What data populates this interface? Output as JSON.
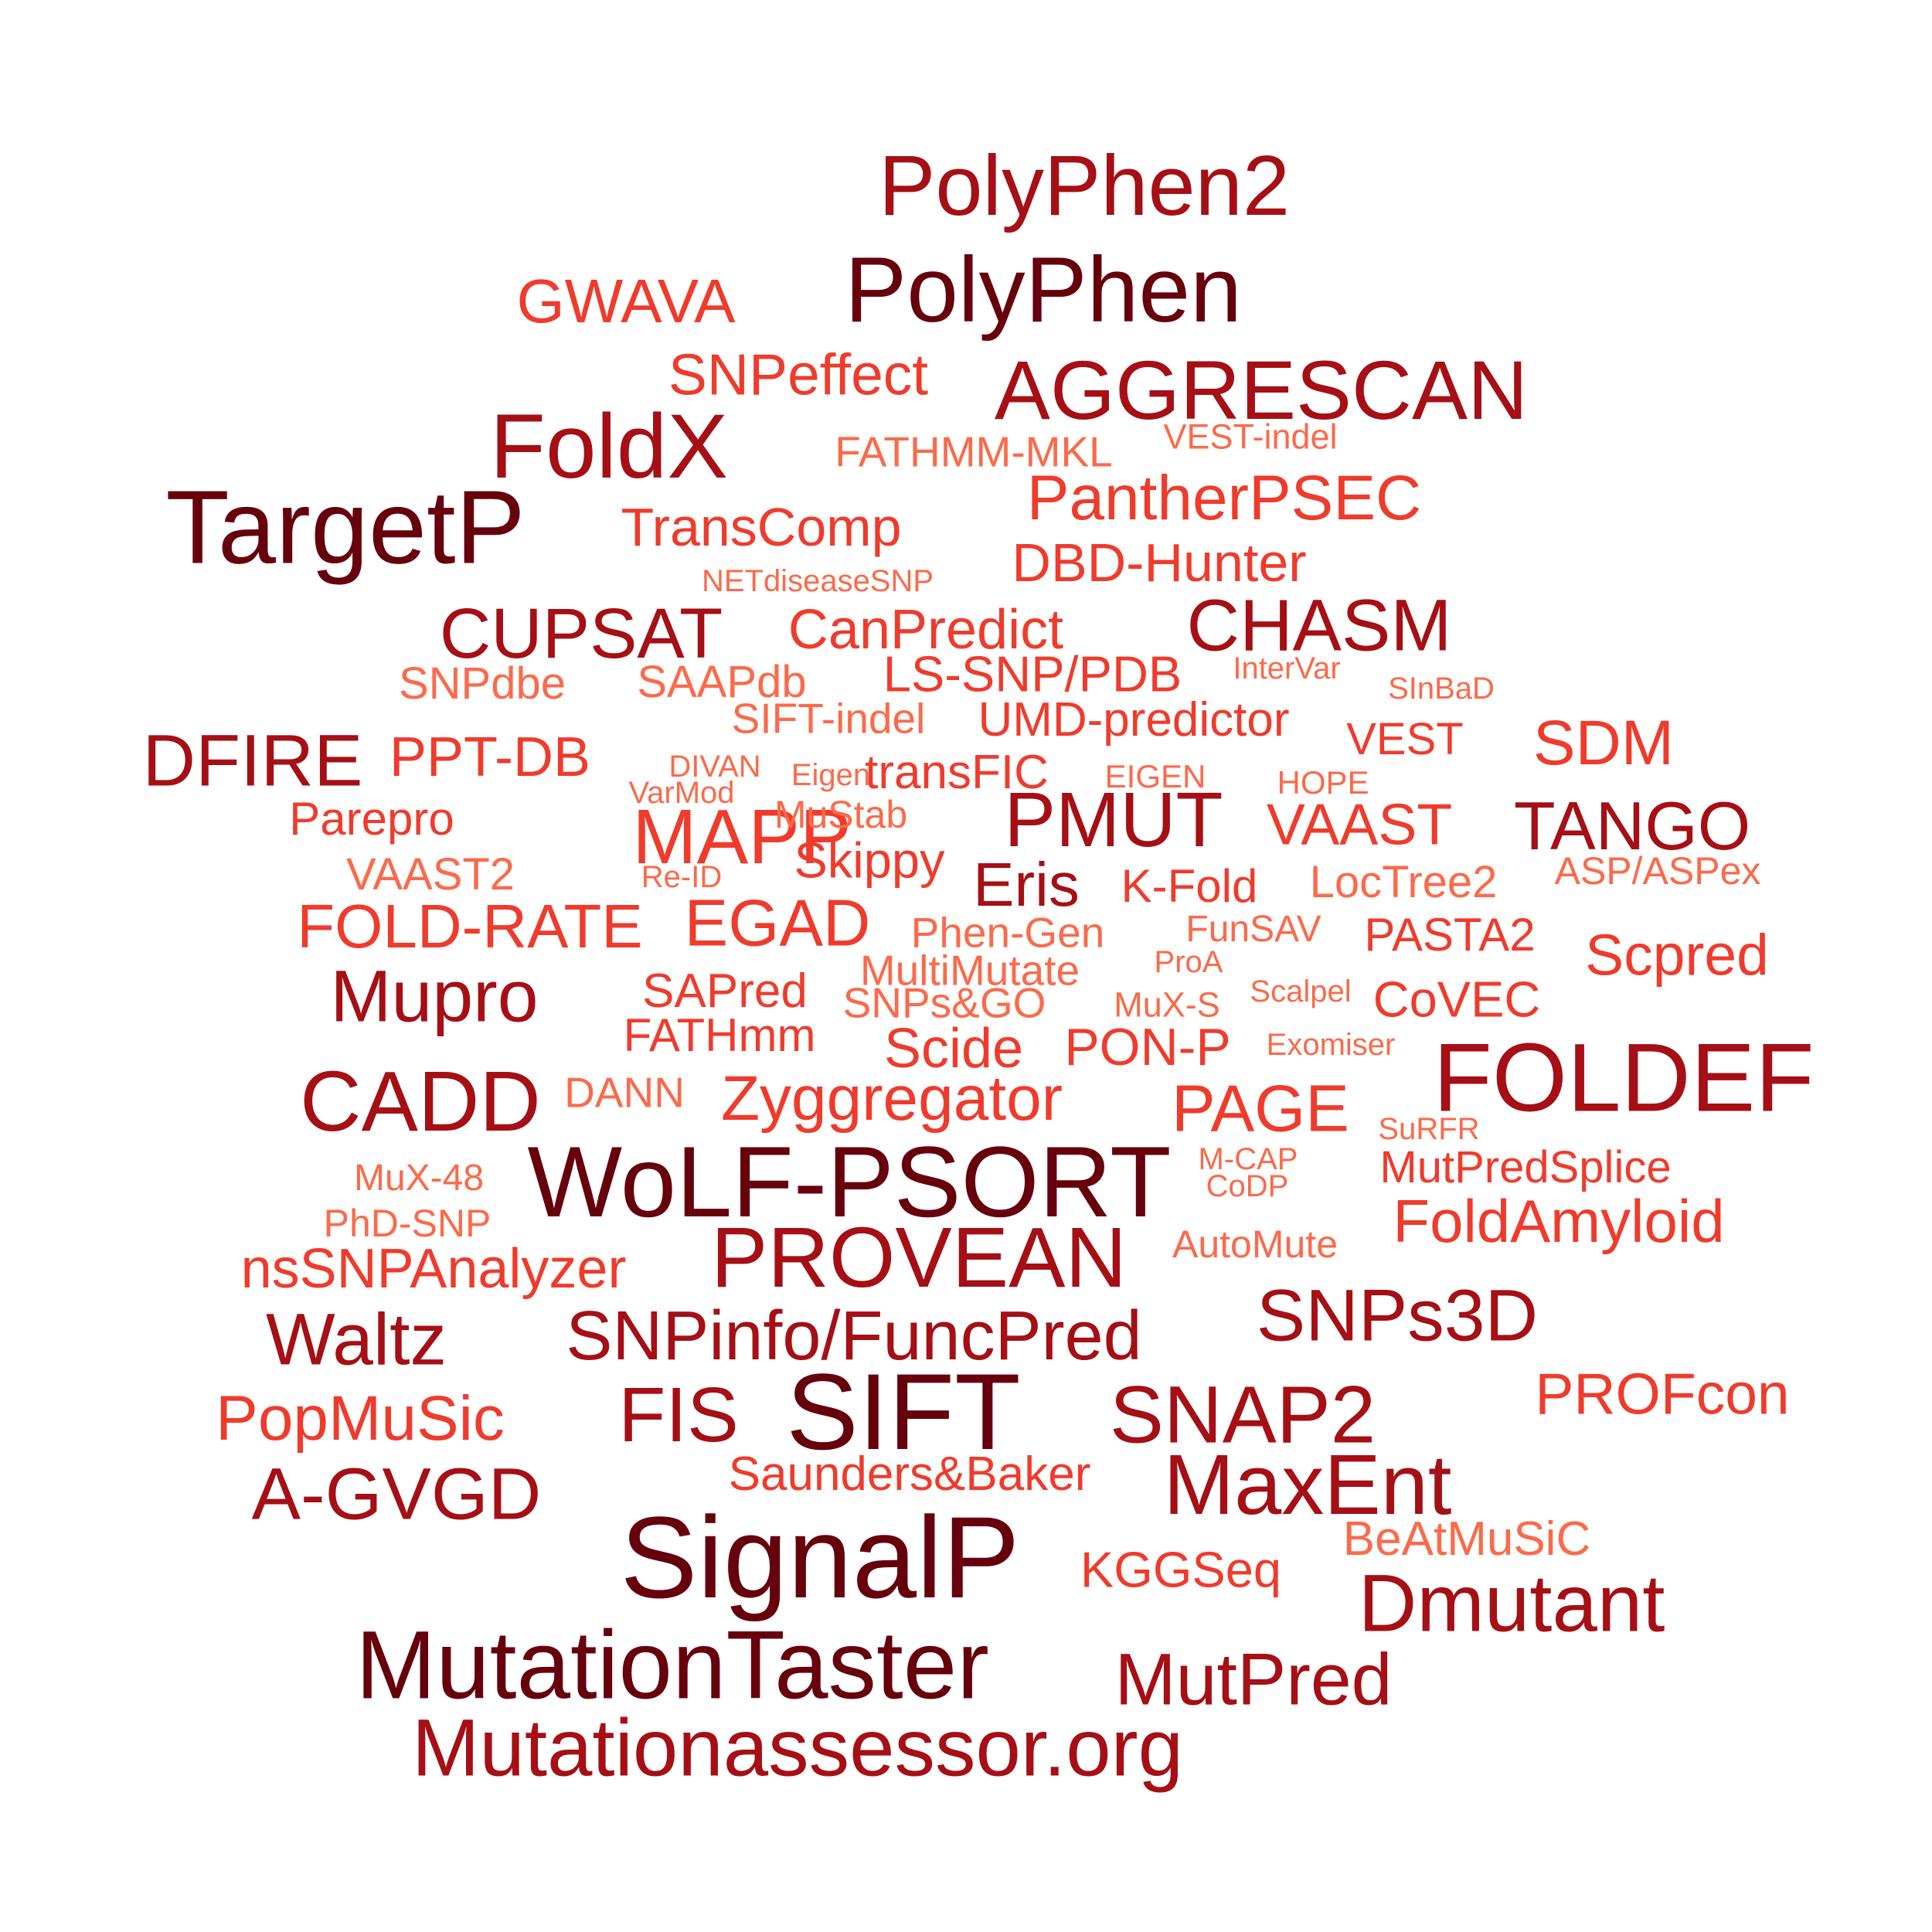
{
  "palette": {
    "darkest": "#67000d",
    "dark": "#a50f15",
    "mid": "#cb181d",
    "light": "#ef3b2c",
    "lightest": "#fb6a4a"
  },
  "words": [
    {
      "text": "PolyPhen2",
      "tone": "dark"
    },
    {
      "text": "PolyPhen",
      "tone": "darkest"
    },
    {
      "text": "GWAVA",
      "tone": "light"
    },
    {
      "text": "SNPeffect",
      "tone": "light"
    },
    {
      "text": "AGGRESCAN",
      "tone": "dark"
    },
    {
      "text": "FoldX",
      "tone": "dark"
    },
    {
      "text": "FATHMM-MKL",
      "tone": "lightest"
    },
    {
      "text": "VEST-indel",
      "tone": "lightest"
    },
    {
      "text": "TargetP",
      "tone": "darkest"
    },
    {
      "text": "PantherPSEC",
      "tone": "light"
    },
    {
      "text": "TransComp",
      "tone": "light"
    },
    {
      "text": "DBD-Hunter",
      "tone": "light"
    },
    {
      "text": "NETdiseaseSNP",
      "tone": "lightest"
    },
    {
      "text": "CUPSAT",
      "tone": "dark"
    },
    {
      "text": "CanPredict",
      "tone": "light"
    },
    {
      "text": "CHASM",
      "tone": "dark"
    },
    {
      "text": "SNPdbe",
      "tone": "lightest"
    },
    {
      "text": "SAAPdb",
      "tone": "lightest"
    },
    {
      "text": "LS-SNP/PDB",
      "tone": "light"
    },
    {
      "text": "InterVar",
      "tone": "lightest"
    },
    {
      "text": "SInBaD",
      "tone": "lightest"
    },
    {
      "text": "SIFT-indel",
      "tone": "lightest"
    },
    {
      "text": "UMD-predictor",
      "tone": "light"
    },
    {
      "text": "VEST",
      "tone": "light"
    },
    {
      "text": "SDM",
      "tone": "light"
    },
    {
      "text": "DFIRE",
      "tone": "dark"
    },
    {
      "text": "PPT-DB",
      "tone": "light"
    },
    {
      "text": "DIVAN",
      "tone": "lightest"
    },
    {
      "text": "Eigen",
      "tone": "lightest"
    },
    {
      "text": "transFIC",
      "tone": "light"
    },
    {
      "text": "EIGEN",
      "tone": "lightest"
    },
    {
      "text": "HOPE",
      "tone": "lightest"
    },
    {
      "text": "VarMod",
      "tone": "lightest"
    },
    {
      "text": "Parepro",
      "tone": "light"
    },
    {
      "text": "MAPP",
      "tone": "light"
    },
    {
      "text": "MuStab",
      "tone": "lightest"
    },
    {
      "text": "PMUT",
      "tone": "dark"
    },
    {
      "text": "VAAST",
      "tone": "light"
    },
    {
      "text": "TANGO",
      "tone": "dark"
    },
    {
      "text": "VAAST2",
      "tone": "lightest"
    },
    {
      "text": "Re-ID",
      "tone": "lightest"
    },
    {
      "text": "Skippy",
      "tone": "light"
    },
    {
      "text": "Eris",
      "tone": "dark"
    },
    {
      "text": "K-Fold",
      "tone": "light"
    },
    {
      "text": "LocTree2",
      "tone": "lightest"
    },
    {
      "text": "ASP/ASPex",
      "tone": "lightest"
    },
    {
      "text": "FOLD-RATE",
      "tone": "light"
    },
    {
      "text": "EGAD",
      "tone": "light"
    },
    {
      "text": "Phen-Gen",
      "tone": "lightest"
    },
    {
      "text": "FunSAV",
      "tone": "lightest"
    },
    {
      "text": "PASTA2",
      "tone": "light"
    },
    {
      "text": "Scpred",
      "tone": "light"
    },
    {
      "text": "MultiMutate",
      "tone": "lightest"
    },
    {
      "text": "ProA",
      "tone": "lightest"
    },
    {
      "text": "Mupro",
      "tone": "dark"
    },
    {
      "text": "SAPred",
      "tone": "light"
    },
    {
      "text": "SNPs&GO",
      "tone": "lightest"
    },
    {
      "text": "MuX-S",
      "tone": "lightest"
    },
    {
      "text": "Scalpel",
      "tone": "lightest"
    },
    {
      "text": "CoVEC",
      "tone": "light"
    },
    {
      "text": "FATHmm",
      "tone": "light"
    },
    {
      "text": "Scide",
      "tone": "light"
    },
    {
      "text": "PON-P",
      "tone": "light"
    },
    {
      "text": "Exomiser",
      "tone": "lightest"
    },
    {
      "text": "FOLDEF",
      "tone": "dark"
    },
    {
      "text": "CADD",
      "tone": "dark"
    },
    {
      "text": "DANN",
      "tone": "lightest"
    },
    {
      "text": "Zyggregator",
      "tone": "light"
    },
    {
      "text": "PAGE",
      "tone": "light"
    },
    {
      "text": "SuRFR",
      "tone": "lightest"
    },
    {
      "text": "WoLF-PSORT",
      "tone": "darkest"
    },
    {
      "text": "M-CAP",
      "tone": "lightest"
    },
    {
      "text": "CoDP",
      "tone": "lightest"
    },
    {
      "text": "MutPredSplice",
      "tone": "light"
    },
    {
      "text": "MuX-48",
      "tone": "lightest"
    },
    {
      "text": "FoldAmyloid",
      "tone": "light"
    },
    {
      "text": "PhD-SNP",
      "tone": "lightest"
    },
    {
      "text": "PROVEAN",
      "tone": "dark"
    },
    {
      "text": "AutoMute",
      "tone": "lightest"
    },
    {
      "text": "nsSNPAnalyzer",
      "tone": "light"
    },
    {
      "text": "SNPs3D",
      "tone": "dark"
    },
    {
      "text": "Waltz",
      "tone": "dark"
    },
    {
      "text": "SNPinfo/FuncPred",
      "tone": "dark"
    },
    {
      "text": "PROFcon",
      "tone": "light"
    },
    {
      "text": "PopMuSic",
      "tone": "light"
    },
    {
      "text": "FIS",
      "tone": "dark"
    },
    {
      "text": "SIFT",
      "tone": "darkest"
    },
    {
      "text": "SNAP2",
      "tone": "dark"
    },
    {
      "text": "Saunders&Baker",
      "tone": "light"
    },
    {
      "text": "MaxEnt",
      "tone": "dark"
    },
    {
      "text": "A-GVGD",
      "tone": "dark"
    },
    {
      "text": "SignalP",
      "tone": "darkest"
    },
    {
      "text": "BeAtMuSiC",
      "tone": "lightest"
    },
    {
      "text": "KGGSeq",
      "tone": "light"
    },
    {
      "text": "Dmutant",
      "tone": "dark"
    },
    {
      "text": "MutationTaster",
      "tone": "darkest"
    },
    {
      "text": "MutPred",
      "tone": "dark"
    },
    {
      "text": "Mutationassessor.org",
      "tone": "dark"
    }
  ]
}
